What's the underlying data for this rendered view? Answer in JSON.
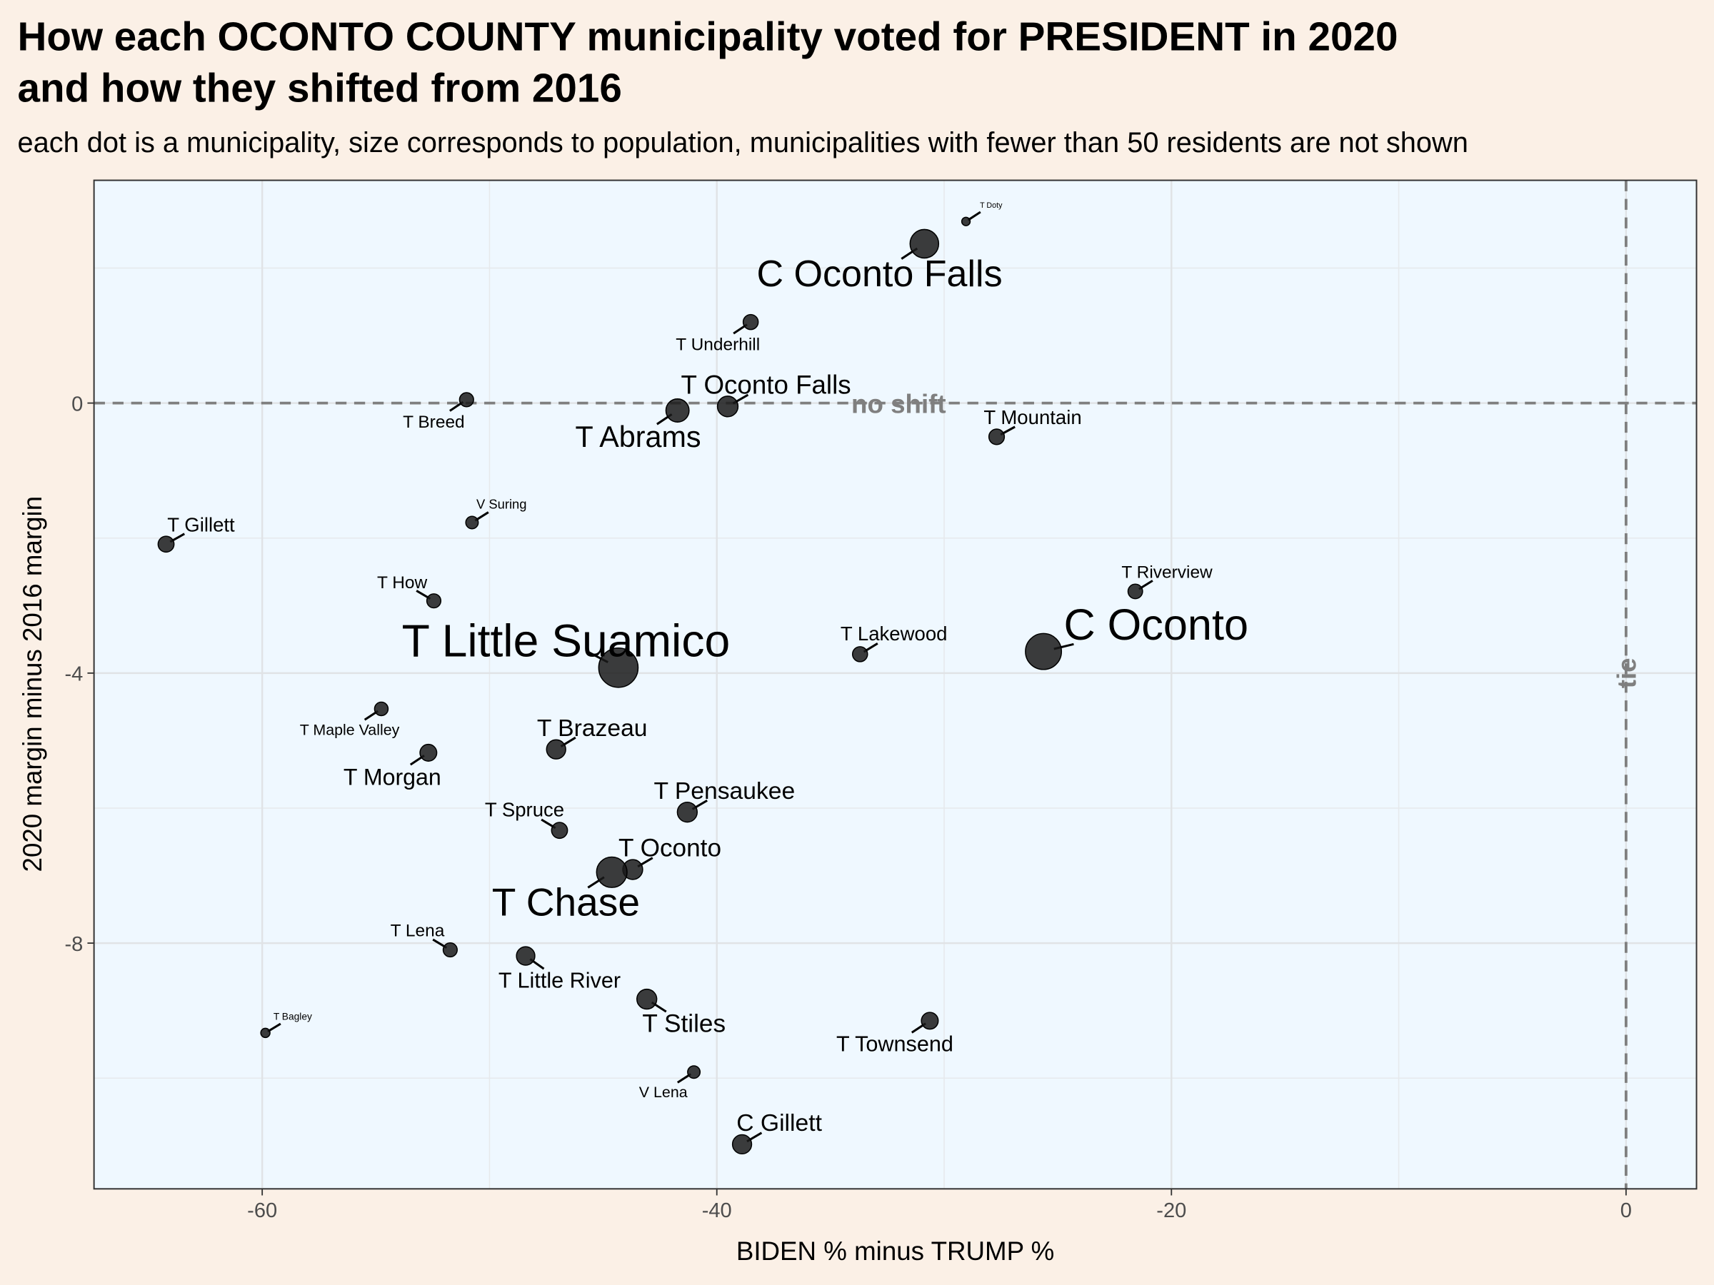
{
  "chart_data": {
    "type": "scatter",
    "title": [
      "How each OCONTO COUNTY municipality voted for PRESIDENT in 2020",
      "and how they shifted from 2016"
    ],
    "subtitle": "each dot is a municipality, size corresponds to population, municipalities with fewer than 50 residents are not shown",
    "x_label": "BIDEN % minus TRUMP %",
    "y_label": "2020 margin minus 2016 margin",
    "xlim": [
      -67.4,
      3.1
    ],
    "ylim": [
      -11.64,
      3.3
    ],
    "xticks": [
      -60,
      -40,
      -20,
      0
    ],
    "yticks": [
      0,
      -4,
      -8
    ],
    "x_minor_grid": [
      -50,
      -30,
      -10
    ],
    "y_minor_grid": [
      2,
      -2,
      -6,
      -10
    ],
    "grid": true,
    "color": "#1a1a1a",
    "hline": 0,
    "vline": 0,
    "annotations": [
      {
        "text": "no shift",
        "x": -32,
        "y": 0
      },
      {
        "text": "tie",
        "x": 0,
        "y": -4
      }
    ],
    "labels": [
      "T Doty",
      "C Oconto Falls",
      "T Underhill",
      "T Breed",
      "T Abrams",
      "T Oconto Falls",
      "T Mountain",
      "V Suring",
      "T Gillett",
      "T How",
      "T Riverview",
      "T Lakewood",
      "C Oconto",
      "T Little Suamico",
      "T Maple Valley",
      "T Brazeau",
      "T Morgan",
      "T Pensaukee",
      "T Spruce",
      "T Oconto",
      "T Chase",
      "T Lena",
      "T Little River",
      "T Stiles",
      "T Townsend",
      "T Bagley",
      "V Lena",
      "C Gillett"
    ],
    "x": [
      -29.04,
      -30.87,
      -38.51,
      -51.01,
      -41.73,
      -39.52,
      -27.69,
      -50.77,
      -64.23,
      -52.45,
      -21.59,
      -33.7,
      -25.63,
      -44.33,
      -54.76,
      -47.07,
      -52.69,
      -41.3,
      -46.92,
      -43.7,
      -44.62,
      -51.73,
      -48.41,
      -43.08,
      -30.63,
      -59.86,
      -41.01,
      -38.89
    ],
    "y": [
      2.69,
      2.36,
      1.2,
      0.05,
      -0.11,
      -0.05,
      -0.5,
      -1.77,
      -2.09,
      -2.93,
      -2.79,
      -3.72,
      -3.68,
      -3.92,
      -4.53,
      -5.13,
      -5.18,
      -6.06,
      -6.33,
      -6.91,
      -6.95,
      -8.1,
      -8.19,
      -8.83,
      -9.15,
      -9.33,
      -9.91,
      -10.98
    ],
    "sizes": [
      250,
      2900,
      800,
      700,
      1900,
      1500,
      850,
      550,
      900,
      700,
      750,
      800,
      4600,
      5500,
      650,
      1300,
      1000,
      1400,
      900,
      1400,
      3300,
      700,
      1200,
      1400,
      1000,
      300,
      550,
      1300
    ]
  }
}
